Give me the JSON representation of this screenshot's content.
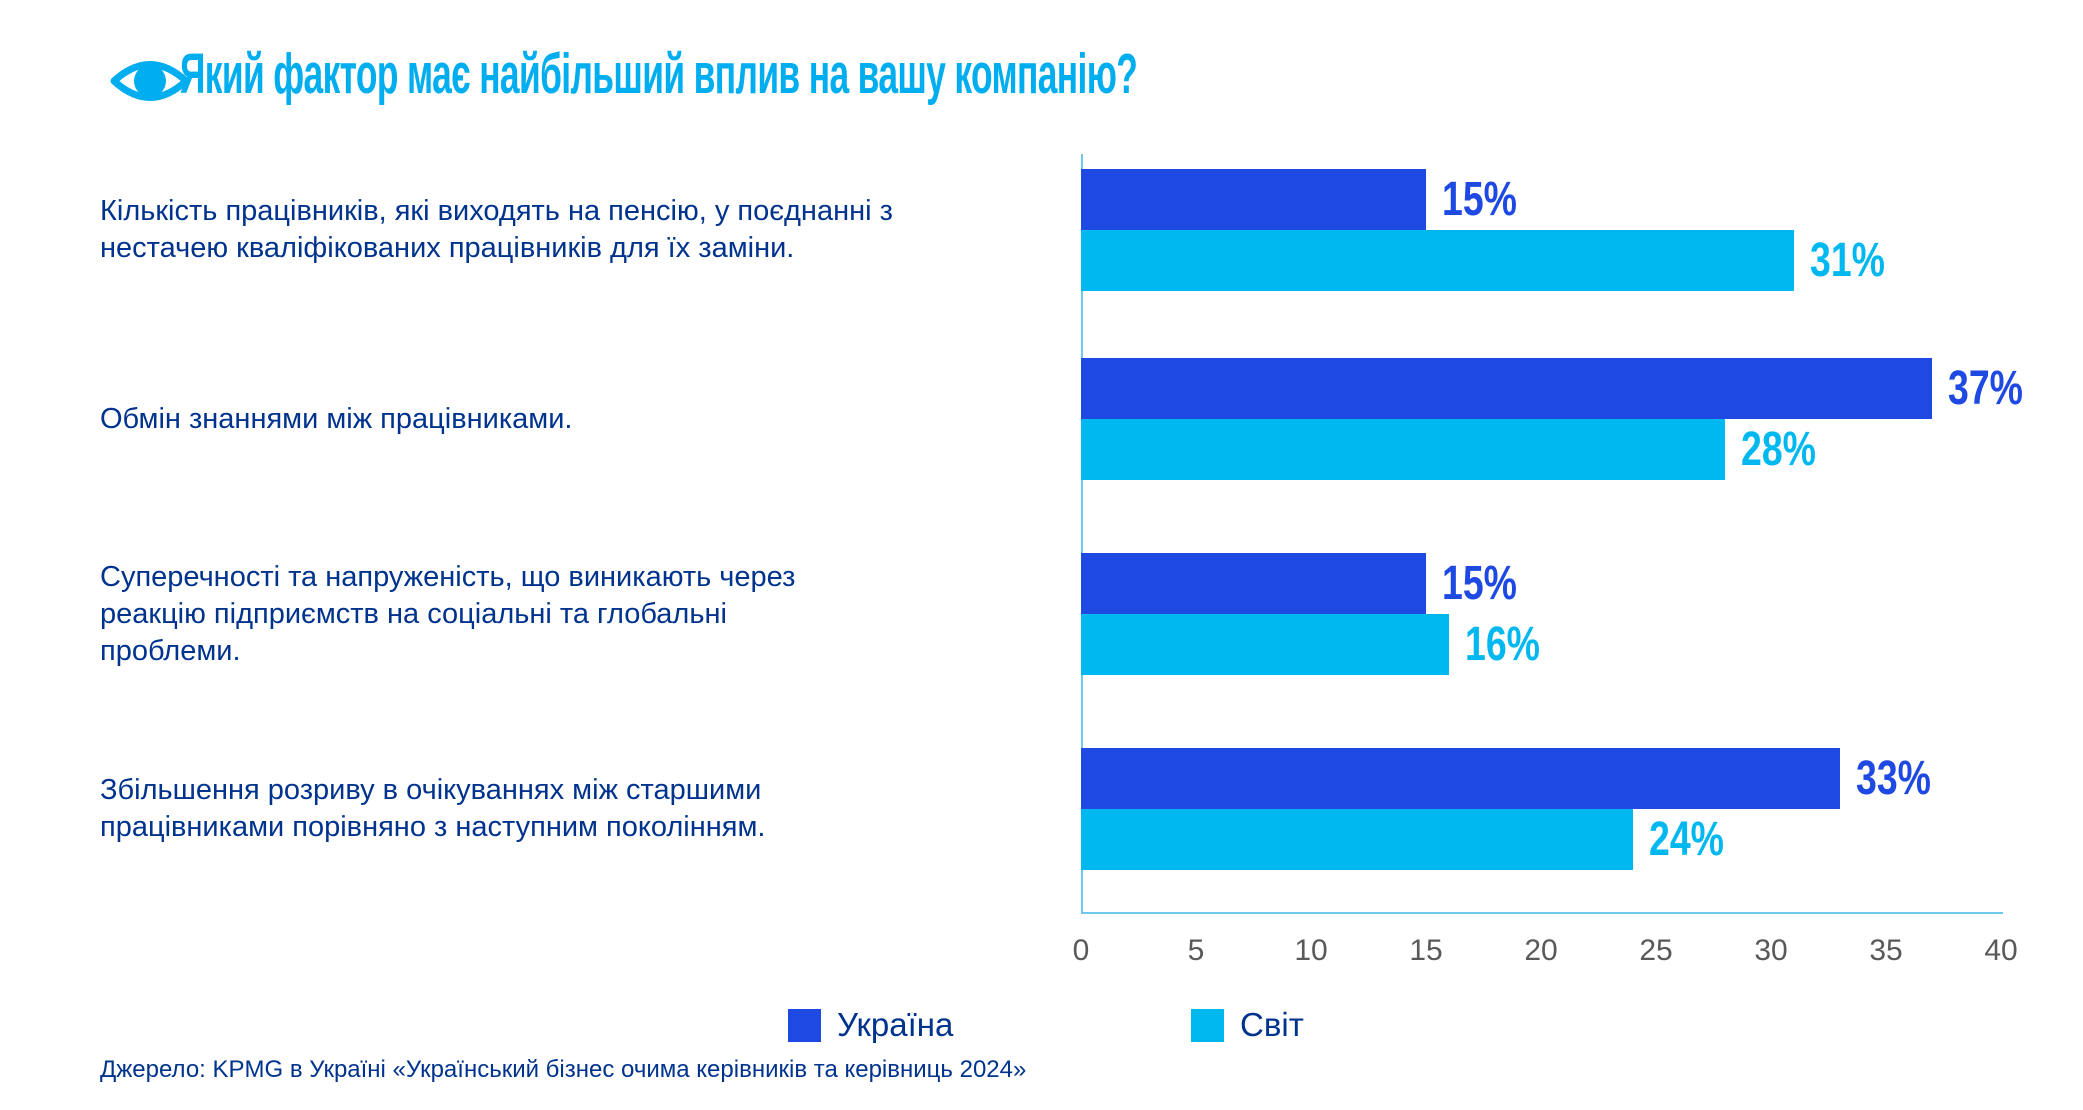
{
  "header": {
    "title": "Який фактор має найбільший вплив на вашу компанію?"
  },
  "colors": {
    "ukraine": "#1E49E2",
    "world": "#00B8F0",
    "title": "#00AEEF",
    "navy": "#00338D",
    "axis_line": "#6FC9EF",
    "tick_text": "#595959"
  },
  "chart_data": {
    "type": "bar",
    "orientation": "horizontal",
    "title": "Який фактор має найбільший вплив на вашу компанію?",
    "categories": [
      "Кількість працівників, які виходять на пенсію, у поєднанні з нестачею кваліфікованих працівників для їх заміни.",
      "Обмін знаннями між працівниками.",
      "Суперечності та напруженість, що виникають через реакцію підприємств на соціальні та глобальні проблеми.",
      "Збільшення розриву в очікуваннях між старшими працівниками порівняно з наступним поколінням."
    ],
    "series": [
      {
        "name": "Україна",
        "values": [
          15,
          37,
          15,
          33
        ]
      },
      {
        "name": "Світ",
        "values": [
          31,
          28,
          16,
          24
        ]
      }
    ],
    "value_suffix": "%",
    "x_ticks": [
      0,
      5,
      10,
      15,
      20,
      25,
      30,
      35,
      40
    ],
    "xlim": [
      0,
      40
    ],
    "grid": false,
    "legend_position": "bottom"
  },
  "source": "Джерело: KPMG в Україні «Український бізнес очима керівників та керівниць 2024»"
}
